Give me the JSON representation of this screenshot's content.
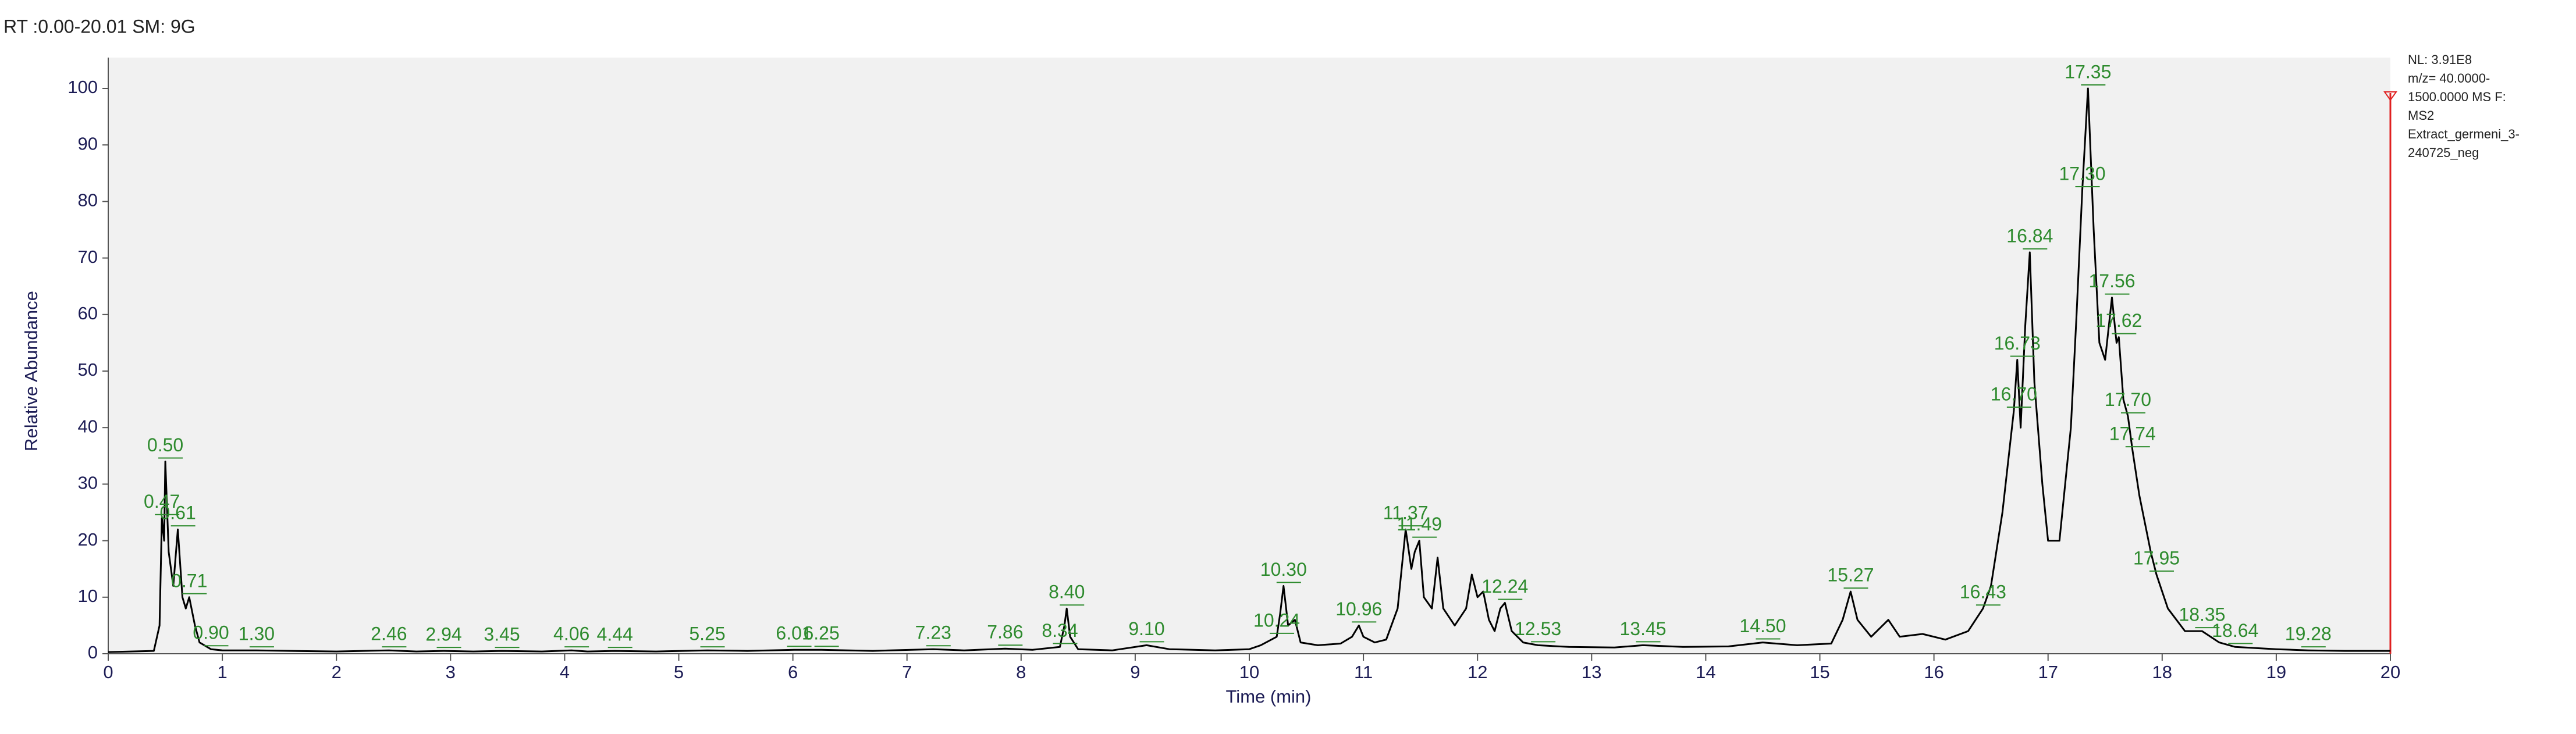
{
  "chart_data": {
    "type": "line",
    "title": "RT :0.00-20.01 SM: 9G",
    "info": [
      "NL: 3.91E8",
      "m/z= 40.0000-",
      "1500.0000 MS  F:",
      "MS2",
      "Extract_germeni_3-",
      "240725_neg"
    ],
    "xlabel": "Time (min)",
    "ylabel": "Relative Abundance",
    "xlim": [
      0,
      20
    ],
    "ylim": [
      0,
      100
    ],
    "xticks": [
      0,
      1,
      2,
      3,
      4,
      5,
      6,
      7,
      8,
      9,
      10,
      11,
      12,
      13,
      14,
      15,
      16,
      17,
      18,
      19,
      20
    ],
    "yticks": [
      0,
      10,
      20,
      30,
      40,
      50,
      60,
      70,
      80,
      90,
      100
    ],
    "series": [
      {
        "color": "#000000",
        "x": [
          0,
          0.4,
          0.45,
          0.47,
          0.49,
          0.5,
          0.53,
          0.57,
          0.61,
          0.65,
          0.68,
          0.71,
          0.76,
          0.8,
          0.9,
          1.0,
          1.3,
          1.6,
          2.0,
          2.46,
          2.7,
          2.94,
          3.2,
          3.45,
          3.8,
          4.06,
          4.2,
          4.44,
          4.8,
          5.25,
          5.6,
          6.01,
          6.25,
          6.7,
          7.23,
          7.5,
          7.86,
          8.1,
          8.34,
          8.38,
          8.4,
          8.43,
          8.5,
          8.8,
          9.1,
          9.3,
          9.7,
          10.0,
          10.1,
          10.24,
          10.27,
          10.3,
          10.34,
          10.4,
          10.45,
          10.6,
          10.8,
          10.9,
          10.96,
          11.0,
          11.1,
          11.2,
          11.3,
          11.37,
          11.42,
          11.45,
          11.49,
          11.53,
          11.6,
          11.65,
          11.7,
          11.8,
          11.9,
          11.95,
          12.0,
          12.05,
          12.1,
          12.15,
          12.2,
          12.24,
          12.3,
          12.4,
          12.53,
          12.8,
          13.2,
          13.45,
          13.8,
          14.2,
          14.5,
          14.8,
          15.1,
          15.2,
          15.27,
          15.33,
          15.45,
          15.6,
          15.7,
          15.9,
          16.1,
          16.3,
          16.43,
          16.5,
          16.6,
          16.7,
          16.73,
          16.76,
          16.8,
          16.84,
          16.88,
          16.95,
          17.0,
          17.1,
          17.2,
          17.25,
          17.3,
          17.35,
          17.4,
          17.45,
          17.5,
          17.56,
          17.6,
          17.62,
          17.66,
          17.7,
          17.74,
          17.8,
          17.9,
          17.95,
          18.05,
          18.2,
          18.35,
          18.5,
          18.64,
          19.0,
          19.28,
          19.6,
          20.0
        ],
        "values": [
          0.3,
          0.5,
          5,
          24,
          20,
          34,
          18,
          12,
          22,
          10,
          8,
          10,
          5,
          2,
          0.8,
          0.6,
          0.6,
          0.5,
          0.4,
          0.6,
          0.4,
          0.5,
          0.4,
          0.5,
          0.4,
          0.6,
          0.4,
          0.5,
          0.4,
          0.6,
          0.5,
          0.7,
          0.7,
          0.5,
          0.8,
          0.6,
          0.9,
          0.7,
          1.2,
          5,
          8,
          3,
          0.8,
          0.6,
          1.5,
          0.8,
          0.6,
          0.8,
          1.5,
          3,
          7,
          12,
          5,
          6,
          2,
          1.5,
          1.8,
          3,
          5,
          3,
          2,
          2.5,
          8,
          22,
          15,
          18,
          20,
          10,
          8,
          17,
          8,
          5,
          8,
          14,
          10,
          11,
          6,
          4,
          8,
          9,
          4,
          2,
          1.5,
          1.2,
          1.1,
          1.5,
          1.2,
          1.3,
          2,
          1.5,
          1.8,
          6,
          11,
          6,
          3,
          6,
          3,
          3.5,
          2.5,
          4,
          8,
          12,
          25,
          43,
          52,
          40,
          58,
          71,
          48,
          30,
          20,
          20,
          40,
          60,
          82,
          100,
          75,
          55,
          52,
          63,
          55,
          56,
          45,
          42,
          36,
          28,
          18,
          14,
          8,
          4,
          4,
          2,
          1.2,
          0.8,
          0.6,
          0.5,
          0.5
        ]
      }
    ],
    "annotations": [
      {
        "x": 0.47,
        "y": 24,
        "label": "0.47"
      },
      {
        "x": 0.5,
        "y": 34,
        "label": "0.50"
      },
      {
        "x": 0.61,
        "y": 22,
        "label": "0.61"
      },
      {
        "x": 0.71,
        "y": 10,
        "label": "0.71"
      },
      {
        "x": 0.9,
        "y": 0.8,
        "label": "0.90"
      },
      {
        "x": 1.3,
        "y": 0.6,
        "label": "1.30"
      },
      {
        "x": 2.46,
        "y": 0.6,
        "label": "2.46"
      },
      {
        "x": 2.94,
        "y": 0.5,
        "label": "2.94"
      },
      {
        "x": 3.45,
        "y": 0.5,
        "label": "3.45"
      },
      {
        "x": 4.06,
        "y": 0.6,
        "label": "4.06"
      },
      {
        "x": 4.44,
        "y": 0.5,
        "label": "4.44"
      },
      {
        "x": 5.25,
        "y": 0.6,
        "label": "5.25"
      },
      {
        "x": 6.01,
        "y": 0.7,
        "label": "6.01"
      },
      {
        "x": 6.25,
        "y": 0.7,
        "label": "6.25"
      },
      {
        "x": 7.23,
        "y": 0.8,
        "label": "7.23"
      },
      {
        "x": 7.86,
        "y": 0.9,
        "label": "7.86"
      },
      {
        "x": 8.34,
        "y": 1.2,
        "label": "8.34"
      },
      {
        "x": 8.4,
        "y": 8,
        "label": "8.40"
      },
      {
        "x": 9.1,
        "y": 1.5,
        "label": "9.10"
      },
      {
        "x": 10.24,
        "y": 3,
        "label": "10.24"
      },
      {
        "x": 10.3,
        "y": 12,
        "label": "10.30"
      },
      {
        "x": 10.96,
        "y": 5,
        "label": "10.96"
      },
      {
        "x": 11.37,
        "y": 22,
        "label": "11.37"
      },
      {
        "x": 11.49,
        "y": 20,
        "label": "11.49"
      },
      {
        "x": 12.24,
        "y": 9,
        "label": "12.24"
      },
      {
        "x": 12.53,
        "y": 1.5,
        "label": "12.53"
      },
      {
        "x": 13.45,
        "y": 1.5,
        "label": "13.45"
      },
      {
        "x": 14.5,
        "y": 2,
        "label": "14.50"
      },
      {
        "x": 15.27,
        "y": 11,
        "label": "15.27"
      },
      {
        "x": 16.43,
        "y": 8,
        "label": "16.43"
      },
      {
        "x": 16.7,
        "y": 43,
        "label": "16.70"
      },
      {
        "x": 16.73,
        "y": 52,
        "label": "16.73"
      },
      {
        "x": 16.84,
        "y": 71,
        "label": "16.84"
      },
      {
        "x": 17.3,
        "y": 82,
        "label": "17.30"
      },
      {
        "x": 17.35,
        "y": 100,
        "label": "17.35"
      },
      {
        "x": 17.56,
        "y": 63,
        "label": "17.56"
      },
      {
        "x": 17.62,
        "y": 56,
        "label": "17.62"
      },
      {
        "x": 17.7,
        "y": 42,
        "label": "17.70"
      },
      {
        "x": 17.74,
        "y": 36,
        "label": "17.74"
      },
      {
        "x": 17.95,
        "y": 14,
        "label": "17.95"
      },
      {
        "x": 18.35,
        "y": 4,
        "label": "18.35"
      },
      {
        "x": 18.64,
        "y": 1.2,
        "label": "18.64"
      },
      {
        "x": 19.28,
        "y": 0.6,
        "label": "19.28"
      }
    ]
  }
}
